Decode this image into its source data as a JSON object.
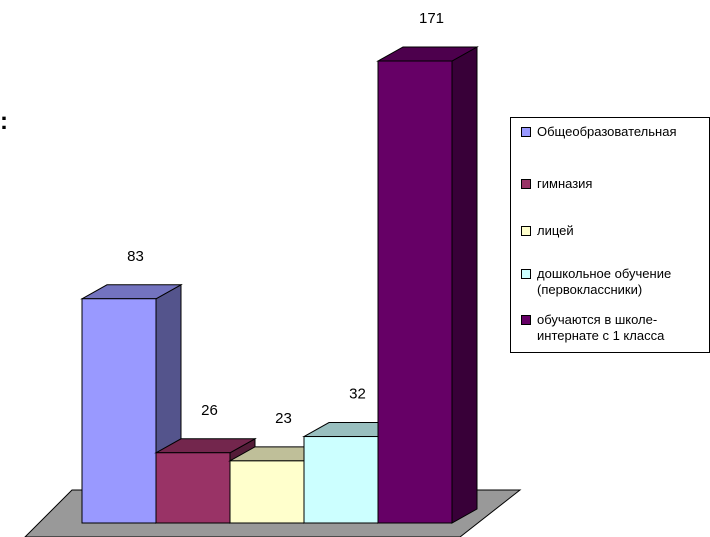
{
  "chart_data": {
    "type": "bar",
    "categories": [
      "Общеобразовательная",
      "гимназия",
      "лицей",
      "дошкольное обучение (первоклассники)",
      "обучаются в школе-интернате с 1 класса"
    ],
    "values": [
      83,
      26,
      23,
      32,
      171
    ],
    "data_labels": [
      "83",
      "26",
      "23",
      "32",
      "171"
    ],
    "colors": [
      "#9999ff",
      "#993366",
      "#ffffcc",
      "#ccffff",
      "#660066"
    ],
    "legend_position": "right",
    "grid": false,
    "style": "3d",
    "ylim": [
      0,
      171
    ]
  },
  "fragment_text": ":"
}
